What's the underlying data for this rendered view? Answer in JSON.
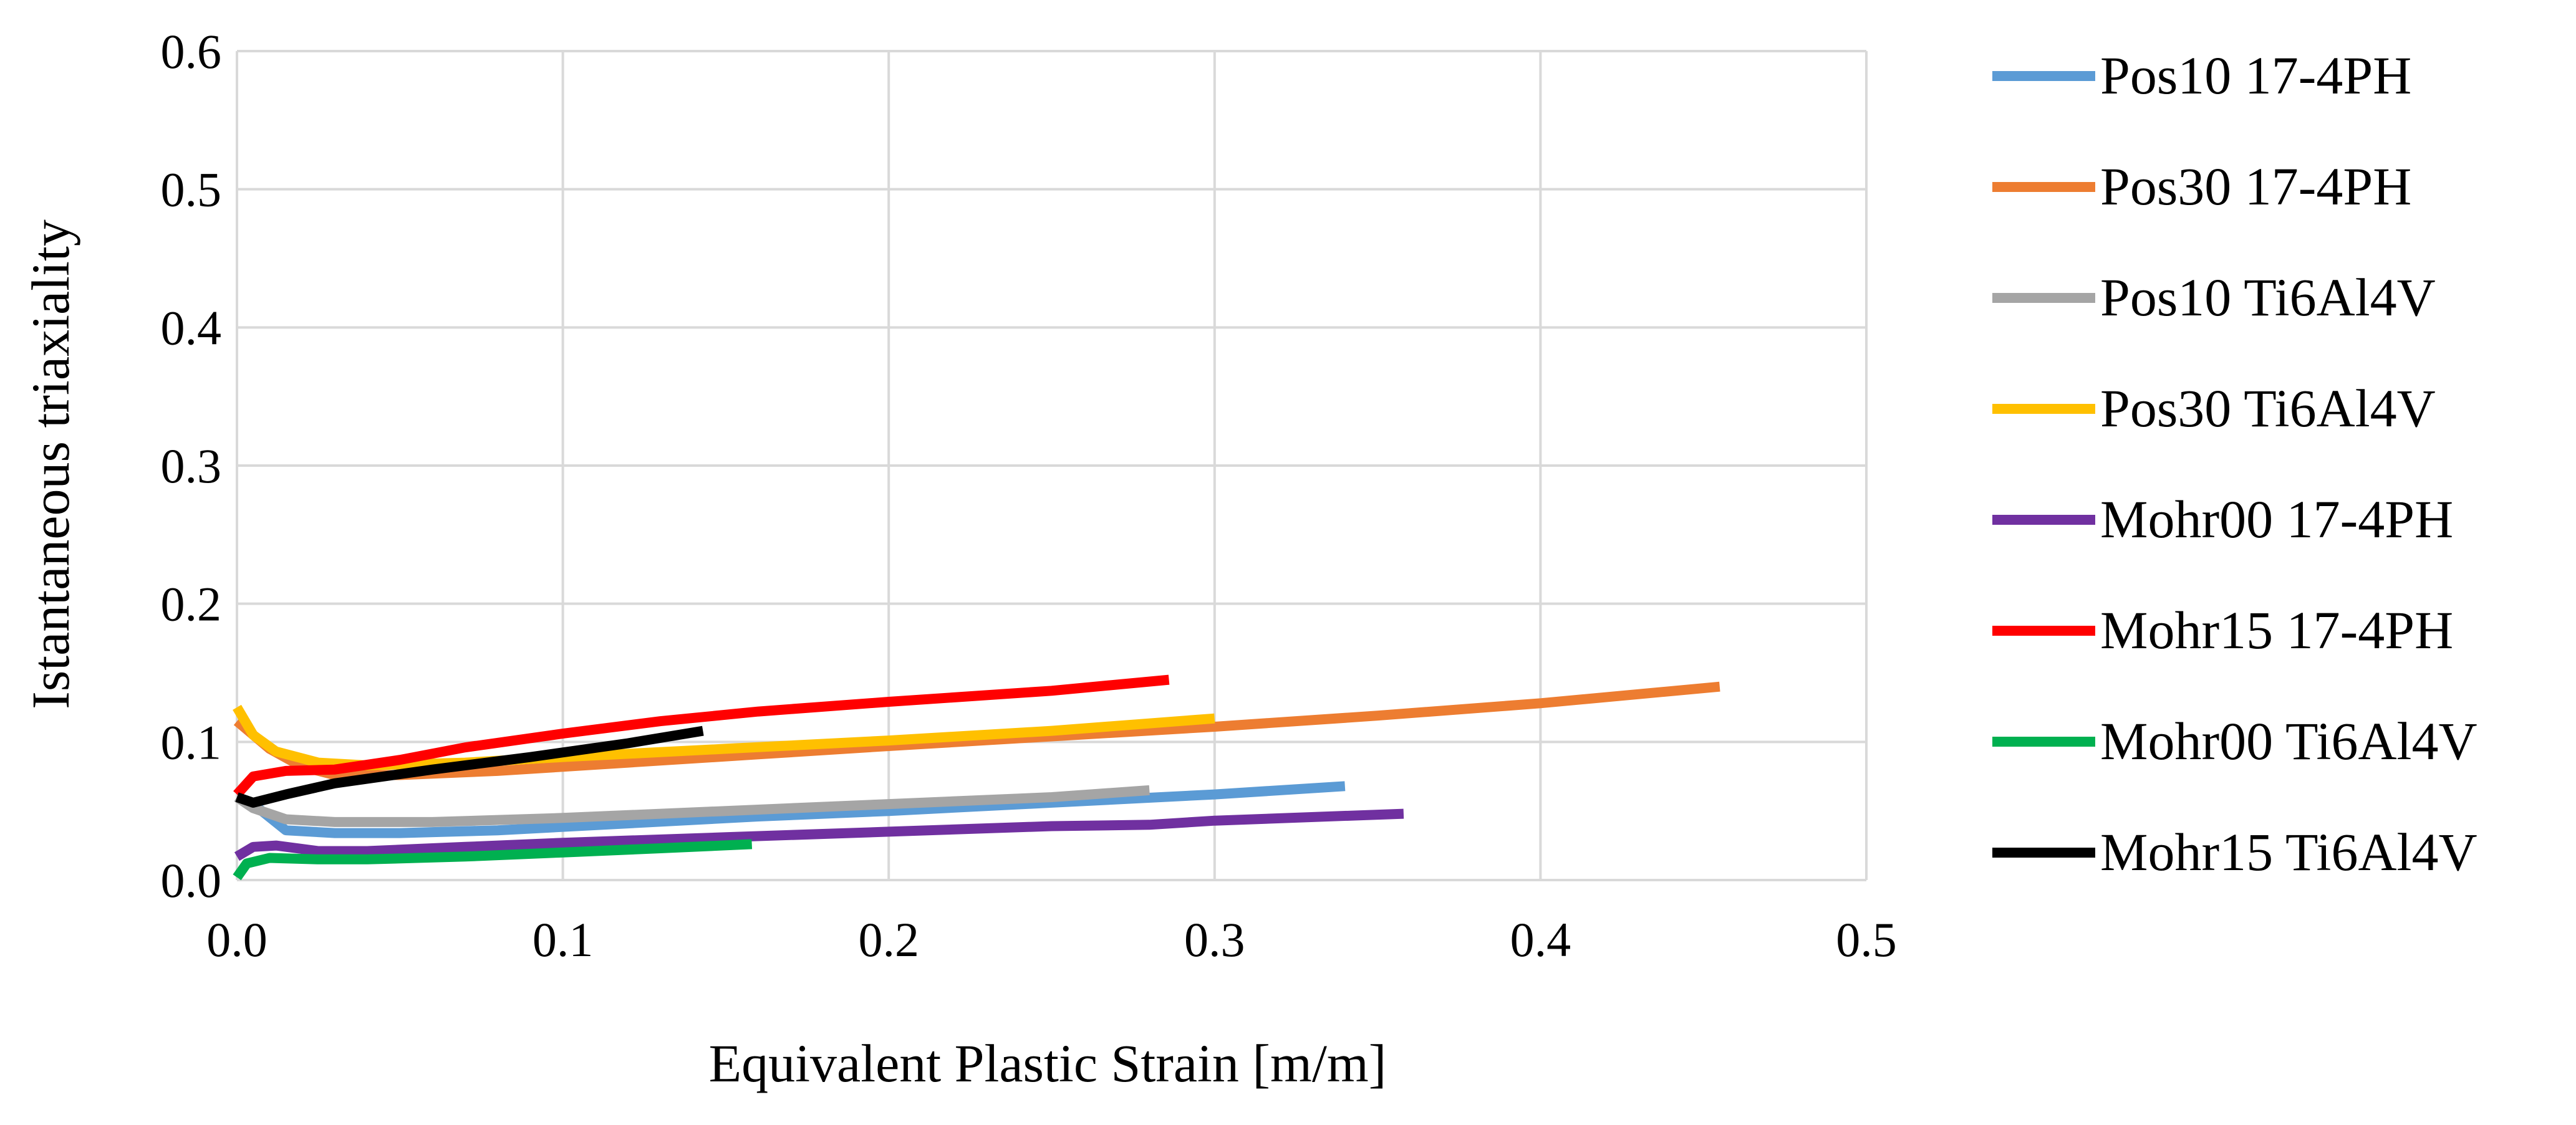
{
  "chart_data": {
    "type": "line",
    "title": "",
    "xlabel": "Equivalent Plastic Strain [m/m]",
    "ylabel": "Istantaneous triaxiality",
    "xlim": [
      0,
      0.5
    ],
    "ylim": [
      0,
      0.6
    ],
    "xticks": [
      0,
      0.1,
      0.2,
      0.3,
      0.4,
      0.5
    ],
    "xtick_labels": [
      "0.0",
      "0.1",
      "0.2",
      "0.3",
      "0.4",
      "0.5"
    ],
    "yticks": [
      0,
      0.1,
      0.2,
      0.3,
      0.4,
      0.5,
      0.6
    ],
    "ytick_labels": [
      "0.0",
      "0.1",
      "0.2",
      "0.3",
      "0.4",
      "0.5",
      "0.6"
    ],
    "grid": true,
    "legend_position": "right",
    "series": [
      {
        "name": "Pos10 17-4PH",
        "color": "#5b9bd5",
        "points": [
          [
            0,
            0.06
          ],
          [
            0.005,
            0.055
          ],
          [
            0.015,
            0.036
          ],
          [
            0.03,
            0.034
          ],
          [
            0.05,
            0.034
          ],
          [
            0.08,
            0.036
          ],
          [
            0.12,
            0.041
          ],
          [
            0.16,
            0.046
          ],
          [
            0.2,
            0.05
          ],
          [
            0.25,
            0.056
          ],
          [
            0.3,
            0.062
          ],
          [
            0.34,
            0.068
          ]
        ]
      },
      {
        "name": "Pos30 17-4PH",
        "color": "#ed7d31",
        "points": [
          [
            0,
            0.115
          ],
          [
            0.01,
            0.095
          ],
          [
            0.02,
            0.082
          ],
          [
            0.03,
            0.076
          ],
          [
            0.05,
            0.076
          ],
          [
            0.08,
            0.079
          ],
          [
            0.12,
            0.085
          ],
          [
            0.16,
            0.091
          ],
          [
            0.2,
            0.097
          ],
          [
            0.25,
            0.104
          ],
          [
            0.3,
            0.111
          ],
          [
            0.35,
            0.119
          ],
          [
            0.4,
            0.128
          ],
          [
            0.455,
            0.14
          ]
        ]
      },
      {
        "name": "Pos10 Ti6Al4V",
        "color": "#a5a5a5",
        "points": [
          [
            0,
            0.06
          ],
          [
            0.005,
            0.052
          ],
          [
            0.015,
            0.044
          ],
          [
            0.03,
            0.042
          ],
          [
            0.06,
            0.042
          ],
          [
            0.1,
            0.045
          ],
          [
            0.15,
            0.05
          ],
          [
            0.2,
            0.055
          ],
          [
            0.25,
            0.06
          ],
          [
            0.28,
            0.065
          ]
        ]
      },
      {
        "name": "Pos30 Ti6Al4V",
        "color": "#ffc000",
        "points": [
          [
            0,
            0.125
          ],
          [
            0.005,
            0.105
          ],
          [
            0.012,
            0.093
          ],
          [
            0.025,
            0.085
          ],
          [
            0.04,
            0.083
          ],
          [
            0.07,
            0.085
          ],
          [
            0.1,
            0.089
          ],
          [
            0.15,
            0.095
          ],
          [
            0.2,
            0.101
          ],
          [
            0.25,
            0.108
          ],
          [
            0.3,
            0.117
          ]
        ]
      },
      {
        "name": "Mohr00 17-4PH",
        "color": "#7030a0",
        "points": [
          [
            0,
            0.017
          ],
          [
            0.005,
            0.024
          ],
          [
            0.012,
            0.025
          ],
          [
            0.025,
            0.021
          ],
          [
            0.04,
            0.021
          ],
          [
            0.07,
            0.024
          ],
          [
            0.1,
            0.027
          ],
          [
            0.15,
            0.031
          ],
          [
            0.2,
            0.035
          ],
          [
            0.25,
            0.039
          ],
          [
            0.28,
            0.04
          ],
          [
            0.3,
            0.043
          ],
          [
            0.358,
            0.048
          ]
        ]
      },
      {
        "name": "Mohr15 17-4PH",
        "color": "#ff0000",
        "points": [
          [
            0,
            0.062
          ],
          [
            0.005,
            0.075
          ],
          [
            0.015,
            0.079
          ],
          [
            0.03,
            0.08
          ],
          [
            0.05,
            0.087
          ],
          [
            0.07,
            0.096
          ],
          [
            0.1,
            0.106
          ],
          [
            0.13,
            0.115
          ],
          [
            0.16,
            0.122
          ],
          [
            0.2,
            0.129
          ],
          [
            0.25,
            0.137
          ],
          [
            0.286,
            0.145
          ]
        ]
      },
      {
        "name": "Mohr00 Ti6Al4V",
        "color": "#00b050",
        "points": [
          [
            0,
            0.002
          ],
          [
            0.003,
            0.012
          ],
          [
            0.01,
            0.016
          ],
          [
            0.025,
            0.015
          ],
          [
            0.04,
            0.015
          ],
          [
            0.07,
            0.017
          ],
          [
            0.1,
            0.02
          ],
          [
            0.13,
            0.023
          ],
          [
            0.158,
            0.026
          ]
        ]
      },
      {
        "name": "Mohr15 Ti6Al4V",
        "color": "#000000",
        "points": [
          [
            0,
            0.06
          ],
          [
            0.005,
            0.056
          ],
          [
            0.015,
            0.062
          ],
          [
            0.03,
            0.07
          ],
          [
            0.06,
            0.08
          ],
          [
            0.09,
            0.089
          ],
          [
            0.12,
            0.099
          ],
          [
            0.143,
            0.108
          ]
        ]
      }
    ]
  }
}
